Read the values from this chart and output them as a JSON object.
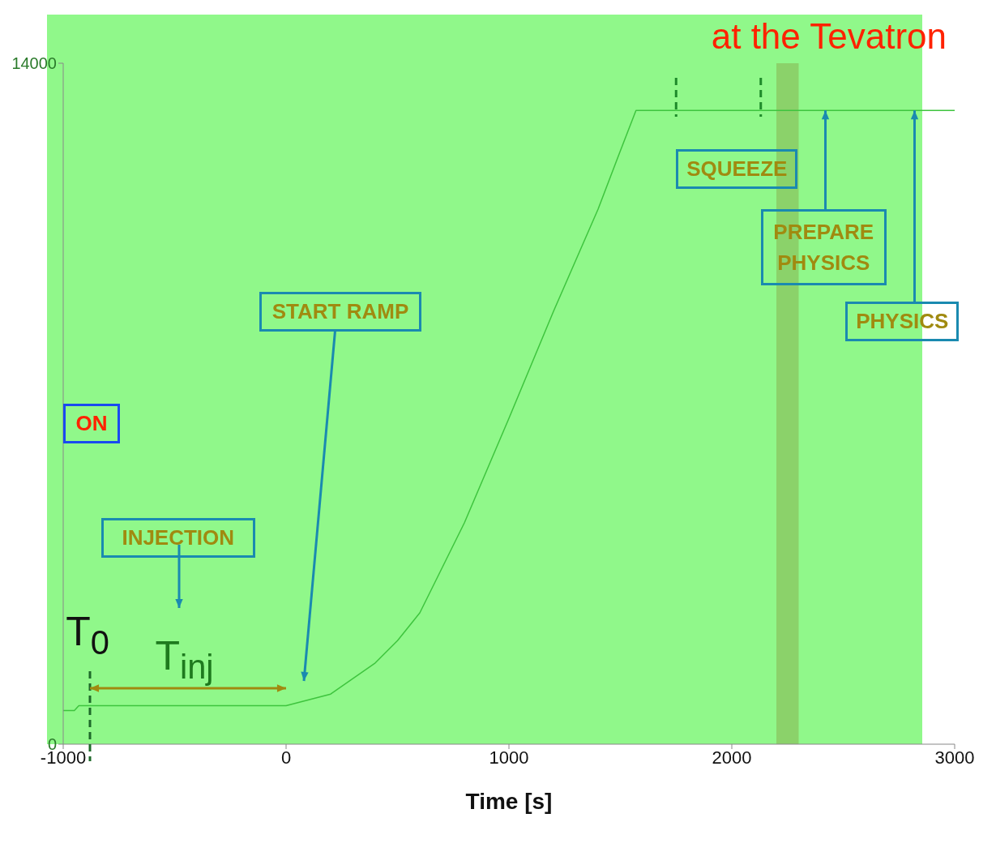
{
  "chart_data": {
    "type": "line",
    "title": "at the Tevatron",
    "xlabel": "Time [s]",
    "x": [
      -1000,
      -950,
      -930,
      -880,
      0,
      200,
      400,
      500,
      600,
      800,
      1000,
      1200,
      1400,
      1500,
      1570,
      1600,
      3000
    ],
    "series": [
      {
        "color": "#3ec43e",
        "values": [
          690,
          690,
          790,
          790,
          790,
          1030,
          1670,
          2130,
          2700,
          4550,
          6700,
          8900,
          11000,
          12200,
          13030,
          13030,
          13030
        ]
      }
    ],
    "xlim": [
      -1000,
      3000
    ],
    "xticks": [
      -1000,
      0,
      1000,
      2000,
      3000
    ],
    "ylim": [
      0,
      14000
    ],
    "yticks": [
      0,
      14000
    ],
    "bands": [
      {
        "axis": "x",
        "from": 2200,
        "to": 2300,
        "color": "#8bd26a"
      }
    ],
    "annotations": [
      "SQUEEZE",
      {
        "text": "PREPARE PHYSICS",
        "x": 2420,
        "y": 13030
      },
      "START RAMP",
      {
        "text": "PHYSICS",
        "x": 2820,
        "y": 13030
      },
      "ON",
      "INJECTION",
      "T$_{0}$",
      "T$_{inj}$"
    ],
    "grid": false,
    "legend": false,
    "marker": "none",
    "line_style": "solid"
  }
}
